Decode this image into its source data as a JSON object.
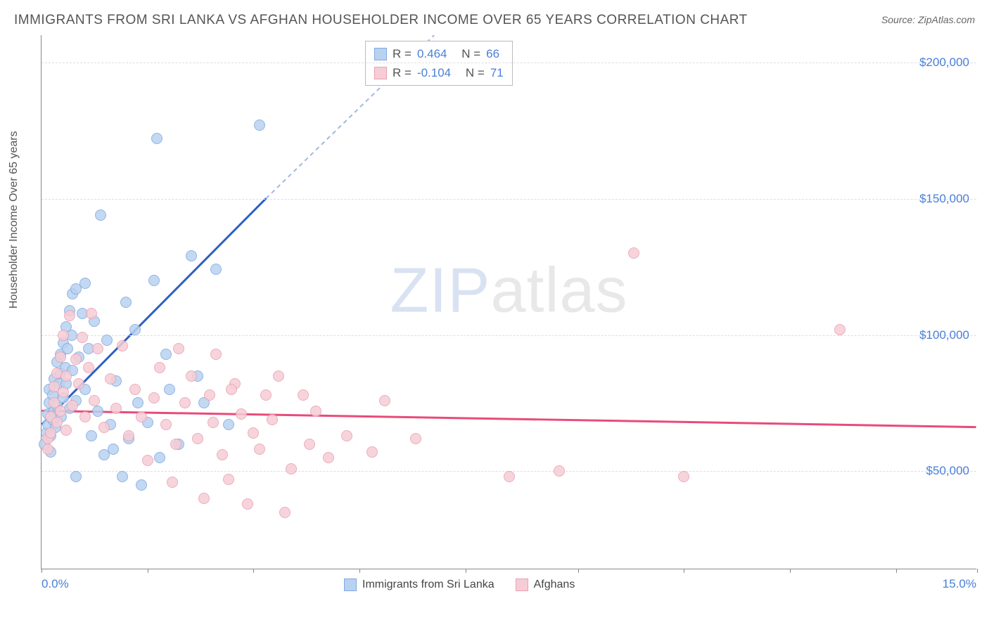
{
  "title": "IMMIGRANTS FROM SRI LANKA VS AFGHAN HOUSEHOLDER INCOME OVER 65 YEARS CORRELATION CHART",
  "source_label": "Source:",
  "source_value": "ZipAtlas.com",
  "watermark_main": "ZIP",
  "watermark_sub": "atlas",
  "chart": {
    "type": "scatter",
    "xlabel": "",
    "ylabel": "Householder Income Over 65 years",
    "xlim": [
      0,
      15
    ],
    "ylim": [
      14000,
      210000
    ],
    "xtick_min_label": "0.0%",
    "xtick_max_label": "15.0%",
    "xticks": [
      0,
      1.7,
      3.4,
      5.1,
      6.8,
      8.6,
      10.3,
      12.0,
      13.7,
      15.0
    ],
    "yticks": [
      50000,
      100000,
      150000,
      200000
    ],
    "ytick_labels": [
      "$50,000",
      "$100,000",
      "$150,000",
      "$200,000"
    ],
    "grid_color": "#dddddd",
    "background_color": "#ffffff",
    "axis_color": "#888888",
    "label_color": "#4a7fd8",
    "marker_radius": 8,
    "series": [
      {
        "name": "Immigrants from Sri Lanka",
        "fill": "#b9d2f0",
        "stroke": "#7fa9dd",
        "trend_stroke": "#2d5fc4",
        "trend_dash_stroke": "#9fb8e6",
        "R": "0.464",
        "N": "66",
        "trend": {
          "x1": 0.0,
          "y1": 67000,
          "x2_solid": 3.6,
          "y2_solid": 150000,
          "x2_dash": 6.3,
          "y2_dash": 210000
        },
        "points": [
          [
            0.05,
            60000
          ],
          [
            0.08,
            64000
          ],
          [
            0.1,
            67000
          ],
          [
            0.1,
            71000
          ],
          [
            0.12,
            75000
          ],
          [
            0.12,
            80000
          ],
          [
            0.15,
            57000
          ],
          [
            0.15,
            63000
          ],
          [
            0.18,
            69000
          ],
          [
            0.18,
            78000
          ],
          [
            0.2,
            84000
          ],
          [
            0.2,
            72000
          ],
          [
            0.22,
            66000
          ],
          [
            0.25,
            90000
          ],
          [
            0.25,
            74000
          ],
          [
            0.28,
            82000
          ],
          [
            0.3,
            86000
          ],
          [
            0.3,
            93000
          ],
          [
            0.32,
            70000
          ],
          [
            0.35,
            77000
          ],
          [
            0.35,
            97000
          ],
          [
            0.38,
            88000
          ],
          [
            0.4,
            103000
          ],
          [
            0.4,
            82000
          ],
          [
            0.42,
            95000
          ],
          [
            0.45,
            109000
          ],
          [
            0.45,
            73000
          ],
          [
            0.48,
            100000
          ],
          [
            0.5,
            115000
          ],
          [
            0.5,
            87000
          ],
          [
            0.55,
            76000
          ],
          [
            0.55,
            117000
          ],
          [
            0.6,
            92000
          ],
          [
            0.65,
            108000
          ],
          [
            0.7,
            80000
          ],
          [
            0.7,
            119000
          ],
          [
            0.75,
            95000
          ],
          [
            0.8,
            63000
          ],
          [
            0.85,
            105000
          ],
          [
            0.9,
            72000
          ],
          [
            0.95,
            144000
          ],
          [
            1.0,
            56000
          ],
          [
            1.05,
            98000
          ],
          [
            1.1,
            67000
          ],
          [
            1.15,
            58000
          ],
          [
            1.2,
            83000
          ],
          [
            1.3,
            48000
          ],
          [
            1.35,
            112000
          ],
          [
            1.4,
            62000
          ],
          [
            1.5,
            102000
          ],
          [
            1.55,
            75000
          ],
          [
            1.6,
            45000
          ],
          [
            1.7,
            68000
          ],
          [
            1.8,
            120000
          ],
          [
            1.85,
            172000
          ],
          [
            1.9,
            55000
          ],
          [
            2.0,
            93000
          ],
          [
            2.05,
            80000
          ],
          [
            2.2,
            60000
          ],
          [
            2.4,
            129000
          ],
          [
            2.5,
            85000
          ],
          [
            2.6,
            75000
          ],
          [
            2.8,
            124000
          ],
          [
            3.0,
            67000
          ],
          [
            3.5,
            177000
          ],
          [
            0.55,
            48000
          ]
        ]
      },
      {
        "name": "Afghans",
        "fill": "#f6cdd6",
        "stroke": "#e8a0b0",
        "trend_stroke": "#e84b7a",
        "R": "-0.104",
        "N": "71",
        "trend": {
          "x1": 0.0,
          "y1": 72000,
          "x2_solid": 15.0,
          "y2_solid": 66000
        },
        "points": [
          [
            0.1,
            58000
          ],
          [
            0.1,
            62000
          ],
          [
            0.15,
            64000
          ],
          [
            0.15,
            70000
          ],
          [
            0.2,
            75000
          ],
          [
            0.2,
            81000
          ],
          [
            0.25,
            68000
          ],
          [
            0.25,
            86000
          ],
          [
            0.3,
            72000
          ],
          [
            0.3,
            92000
          ],
          [
            0.35,
            79000
          ],
          [
            0.35,
            100000
          ],
          [
            0.4,
            65000
          ],
          [
            0.4,
            85000
          ],
          [
            0.45,
            107000
          ],
          [
            0.5,
            74000
          ],
          [
            0.55,
            91000
          ],
          [
            0.6,
            82000
          ],
          [
            0.65,
            99000
          ],
          [
            0.7,
            70000
          ],
          [
            0.75,
            88000
          ],
          [
            0.8,
            108000
          ],
          [
            0.85,
            76000
          ],
          [
            0.9,
            95000
          ],
          [
            1.0,
            66000
          ],
          [
            1.1,
            84000
          ],
          [
            1.2,
            73000
          ],
          [
            1.3,
            96000
          ],
          [
            1.4,
            63000
          ],
          [
            1.5,
            80000
          ],
          [
            1.6,
            70000
          ],
          [
            1.7,
            54000
          ],
          [
            1.8,
            77000
          ],
          [
            1.9,
            88000
          ],
          [
            2.0,
            67000
          ],
          [
            2.1,
            46000
          ],
          [
            2.2,
            95000
          ],
          [
            2.3,
            75000
          ],
          [
            2.4,
            85000
          ],
          [
            2.5,
            62000
          ],
          [
            2.6,
            40000
          ],
          [
            2.7,
            78000
          ],
          [
            2.75,
            68000
          ],
          [
            2.8,
            93000
          ],
          [
            2.9,
            56000
          ],
          [
            3.0,
            47000
          ],
          [
            3.1,
            82000
          ],
          [
            3.2,
            71000
          ],
          [
            3.3,
            38000
          ],
          [
            3.4,
            64000
          ],
          [
            3.5,
            58000
          ],
          [
            3.6,
            78000
          ],
          [
            3.7,
            69000
          ],
          [
            3.8,
            85000
          ],
          [
            3.9,
            35000
          ],
          [
            4.0,
            51000
          ],
          [
            4.2,
            78000
          ],
          [
            4.3,
            60000
          ],
          [
            4.4,
            72000
          ],
          [
            4.6,
            55000
          ],
          [
            4.9,
            63000
          ],
          [
            5.3,
            57000
          ],
          [
            5.5,
            76000
          ],
          [
            6.0,
            62000
          ],
          [
            7.5,
            48000
          ],
          [
            8.3,
            50000
          ],
          [
            9.5,
            130000
          ],
          [
            10.3,
            48000
          ],
          [
            12.8,
            102000
          ],
          [
            3.05,
            80000
          ],
          [
            2.15,
            60000
          ]
        ]
      }
    ],
    "stats_labels": {
      "R": "R =",
      "N": "N ="
    },
    "legend": {
      "s1": "Immigrants from Sri Lanka",
      "s2": "Afghans"
    }
  }
}
